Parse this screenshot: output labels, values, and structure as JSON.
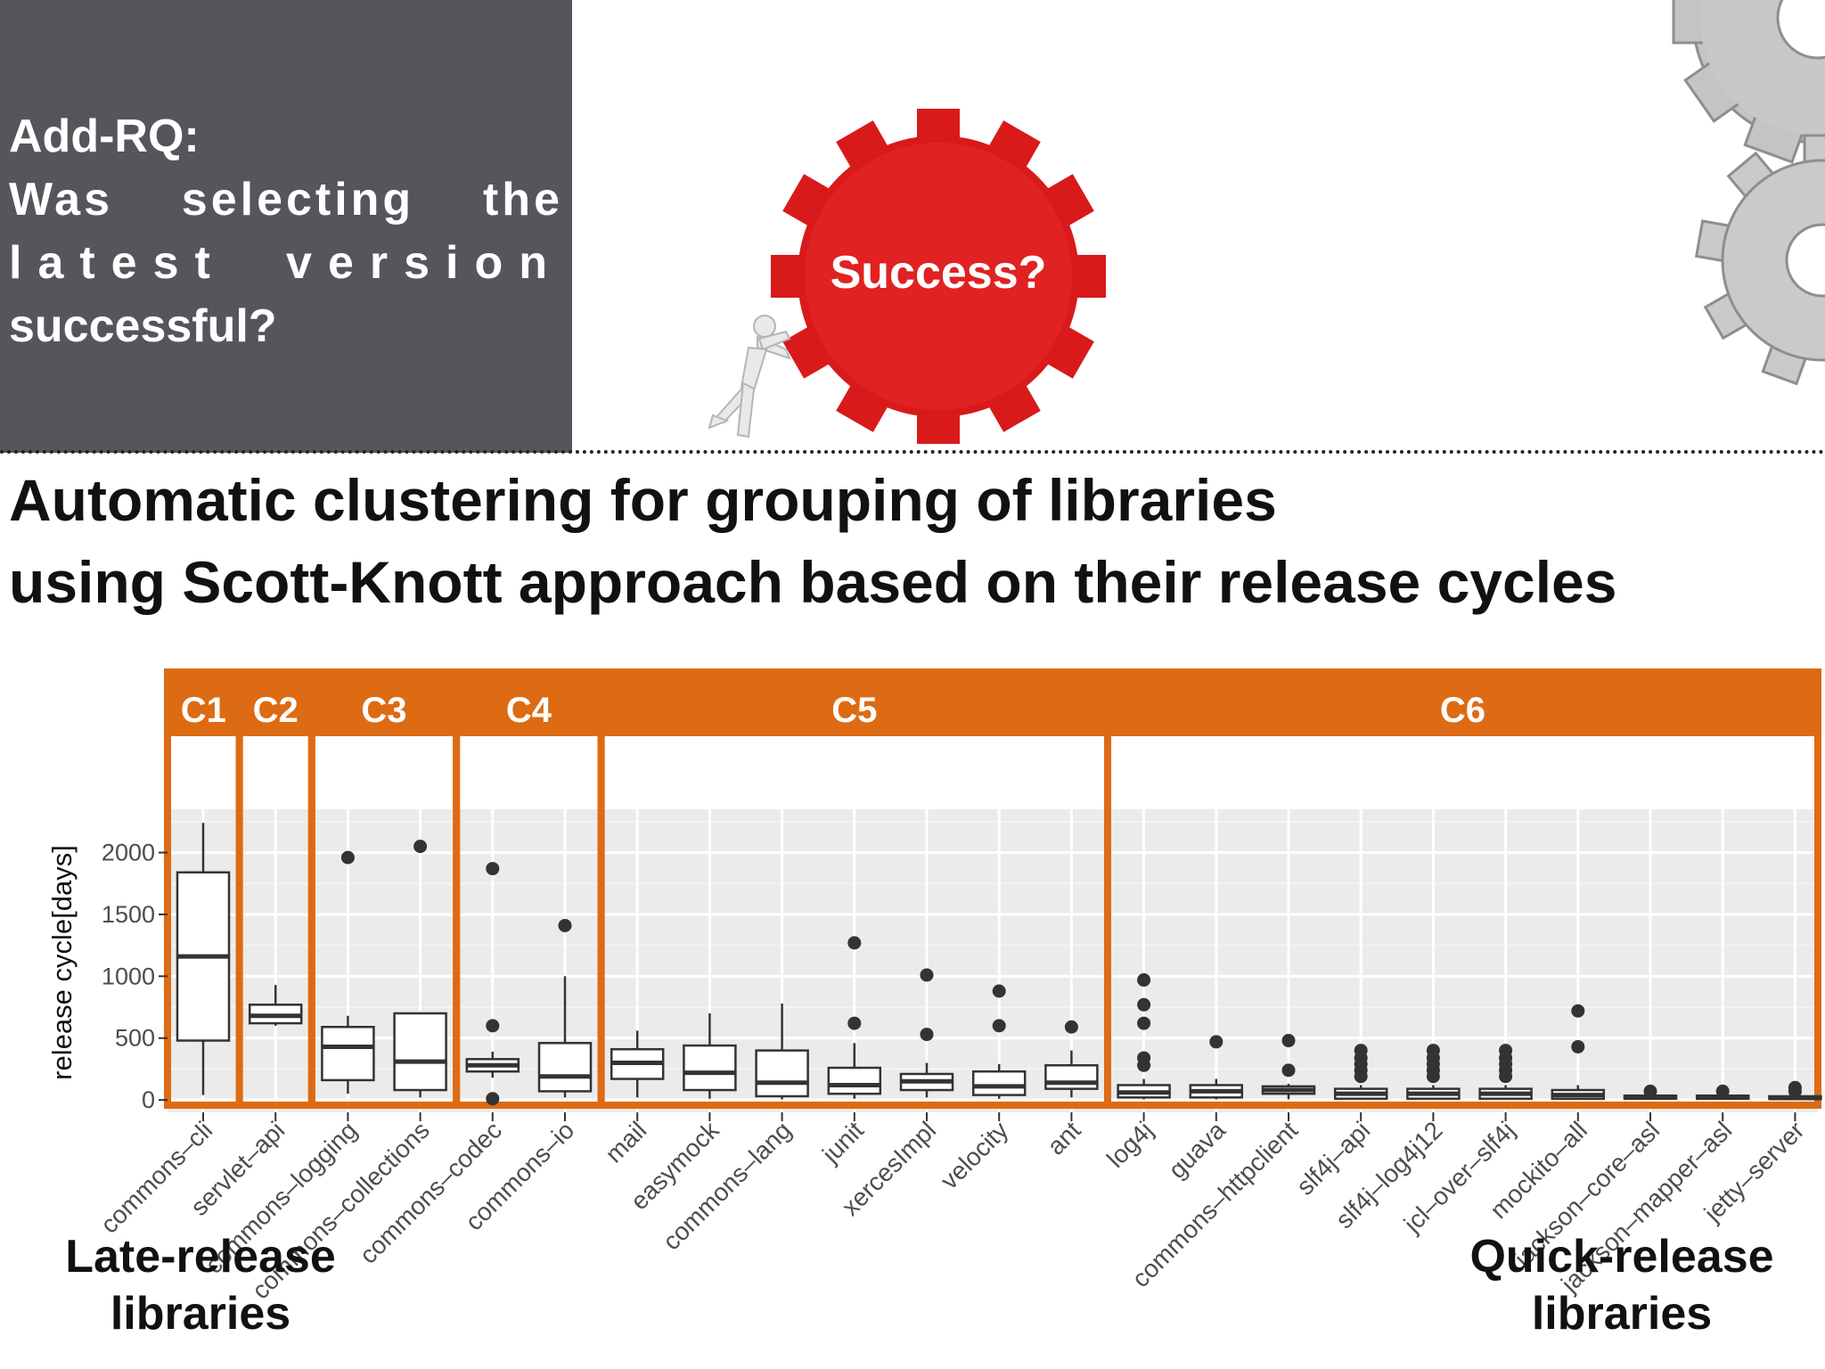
{
  "header": {
    "rq_title": "Add-RQ:",
    "rq_line1": "Was selecting the",
    "rq_line2": "latest version",
    "rq_line3": "successful?",
    "gear_label": "Success?"
  },
  "main_title": {
    "line1": "Automatic clustering for grouping of libraries",
    "line2": "using Scott-Knott approach based on their release cycles"
  },
  "corner_labels": {
    "late": [
      "Late-release",
      "libraries"
    ],
    "quick": [
      "Quick-release",
      "libraries"
    ]
  },
  "colors": {
    "panel": "#54565b",
    "cluster_orange": "#dd6b14",
    "gear_red": "#d81a1a",
    "plot_bg": "#ebebeb"
  },
  "icons": [
    "red-gear-icon",
    "gray-gear-icon",
    "pushing-figure-icon"
  ],
  "chart_data": {
    "type": "box",
    "ylabel": "release cycle[days]",
    "xlabel": "",
    "ylim": [
      -100,
      2350
    ],
    "yticks": [
      0,
      500,
      1000,
      1500,
      2000
    ],
    "grid": true,
    "clusters": [
      {
        "label": "C1",
        "members": [
          "commons-cli"
        ]
      },
      {
        "label": "C2",
        "members": [
          "servlet-api"
        ]
      },
      {
        "label": "C3",
        "members": [
          "commons-logging",
          "commons-collections"
        ]
      },
      {
        "label": "C4",
        "members": [
          "commons-codec",
          "commons-io"
        ]
      },
      {
        "label": "C5",
        "members": [
          "mail",
          "easymock",
          "commons-lang",
          "junit",
          "xercesImpl",
          "velocity",
          "ant"
        ]
      },
      {
        "label": "C6",
        "members": [
          "log4j",
          "guava",
          "commons-httpclient",
          "slf4j-api",
          "slf4j-log4j12",
          "jcl-over-slf4j",
          "mockito-all",
          "jackson-core-asl",
          "jackson-mapper-asl",
          "jetty-server"
        ]
      }
    ],
    "categories": [
      "commons–cli",
      "servlet–api",
      "commons–logging",
      "commons–collections",
      "commons–codec",
      "commons–io",
      "mail",
      "easymock",
      "commons–lang",
      "junit",
      "xercesImpl",
      "velocity",
      "ant",
      "log4j",
      "guava",
      "commons–httpclient",
      "slf4j–api",
      "slf4j–log4j12",
      "jcl–over–slf4j",
      "mockito–all",
      "jackson–core–asl",
      "jackson–mapper–asl",
      "jetty–server"
    ],
    "boxes": [
      {
        "min": 40,
        "q1": 480,
        "median": 1160,
        "q3": 1840,
        "max": 2240,
        "outliers": []
      },
      {
        "min": 600,
        "q1": 620,
        "median": 680,
        "q3": 770,
        "max": 930,
        "outliers": []
      },
      {
        "min": 50,
        "q1": 160,
        "median": 430,
        "q3": 590,
        "max": 680,
        "outliers": [
          1960
        ]
      },
      {
        "min": 20,
        "q1": 80,
        "median": 310,
        "q3": 700,
        "max": 710,
        "outliers": [
          2050
        ]
      },
      {
        "min": 180,
        "q1": 230,
        "median": 280,
        "q3": 330,
        "max": 390,
        "outliers": [
          1870,
          600,
          10
        ]
      },
      {
        "min": 20,
        "q1": 70,
        "median": 190,
        "q3": 460,
        "max": 1000,
        "outliers": [
          1410
        ]
      },
      {
        "min": 20,
        "q1": 170,
        "median": 300,
        "q3": 410,
        "max": 560,
        "outliers": []
      },
      {
        "min": 10,
        "q1": 80,
        "median": 220,
        "q3": 440,
        "max": 700,
        "outliers": []
      },
      {
        "min": 5,
        "q1": 30,
        "median": 140,
        "q3": 400,
        "max": 780,
        "outliers": []
      },
      {
        "min": 10,
        "q1": 50,
        "median": 120,
        "q3": 260,
        "max": 460,
        "outliers": [
          1270,
          620
        ]
      },
      {
        "min": 20,
        "q1": 80,
        "median": 150,
        "q3": 210,
        "max": 300,
        "outliers": [
          1010,
          530
        ]
      },
      {
        "min": 10,
        "q1": 40,
        "median": 110,
        "q3": 230,
        "max": 290,
        "outliers": [
          880,
          600
        ]
      },
      {
        "min": 20,
        "q1": 90,
        "median": 140,
        "q3": 280,
        "max": 400,
        "outliers": [
          590
        ]
      },
      {
        "min": 5,
        "q1": 20,
        "median": 60,
        "q3": 120,
        "max": 170,
        "outliers": [
          970,
          770,
          620,
          340,
          280
        ]
      },
      {
        "min": 5,
        "q1": 20,
        "median": 70,
        "q3": 120,
        "max": 170,
        "outliers": [
          470
        ]
      },
      {
        "min": 5,
        "q1": 50,
        "median": 80,
        "q3": 110,
        "max": 130,
        "outliers": [
          480,
          240
        ]
      },
      {
        "min": 5,
        "q1": 10,
        "median": 50,
        "q3": 90,
        "max": 120,
        "outliers": [
          400,
          340,
          290,
          240,
          190
        ]
      },
      {
        "min": 5,
        "q1": 10,
        "median": 50,
        "q3": 90,
        "max": 120,
        "outliers": [
          400,
          340,
          290,
          240,
          190
        ]
      },
      {
        "min": 5,
        "q1": 10,
        "median": 50,
        "q3": 90,
        "max": 120,
        "outliers": [
          400,
          340,
          290,
          240,
          190
        ]
      },
      {
        "min": 5,
        "q1": 10,
        "median": 40,
        "q3": 80,
        "max": 120,
        "outliers": [
          720,
          430
        ]
      },
      {
        "min": 5,
        "q1": 10,
        "median": 20,
        "q3": 35,
        "max": 40,
        "outliers": [
          70
        ]
      },
      {
        "min": 5,
        "q1": 10,
        "median": 20,
        "q3": 35,
        "max": 40,
        "outliers": [
          70
        ]
      },
      {
        "min": 5,
        "q1": 10,
        "median": 15,
        "q3": 30,
        "max": 40,
        "outliers": [
          100,
          70
        ]
      }
    ]
  }
}
